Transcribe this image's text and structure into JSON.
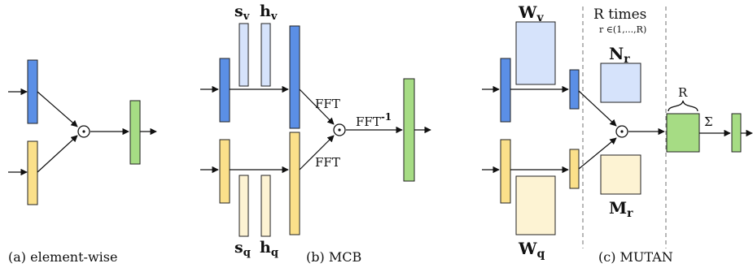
{
  "captions": {
    "a": "(a) element-wise",
    "b": "(b) MCB",
    "c": "(c) MUTAN"
  },
  "mcb": {
    "s_v": "s",
    "s_v_sub": "v",
    "h_v": "h",
    "h_v_sub": "v",
    "s_q": "s",
    "s_q_sub": "q",
    "h_q": "h",
    "h_q_sub": "q",
    "fft_top": "FFT",
    "fft_bottom": "FFT",
    "ifft": "FFT",
    "ifft_sup": "-1"
  },
  "mutan": {
    "w_v": "W",
    "w_v_sub": "v",
    "w_q": "W",
    "w_q_sub": "q",
    "n_r": "N",
    "n_r_sub": "r",
    "m_r": "M",
    "m_r_sub": "r",
    "r_times": "R times",
    "r_range": "r ∈(1,...,R)",
    "r_brace": "R",
    "sigma": "Σ"
  },
  "symbols": {
    "odot": "⊙"
  },
  "colors": {
    "blue": "#5b8fe6",
    "blue_light": "#d6e3fb",
    "yellow": "#fbe08a",
    "yellow_light": "#fdf3d3",
    "green": "#a6dc84",
    "stroke": "#222222"
  }
}
